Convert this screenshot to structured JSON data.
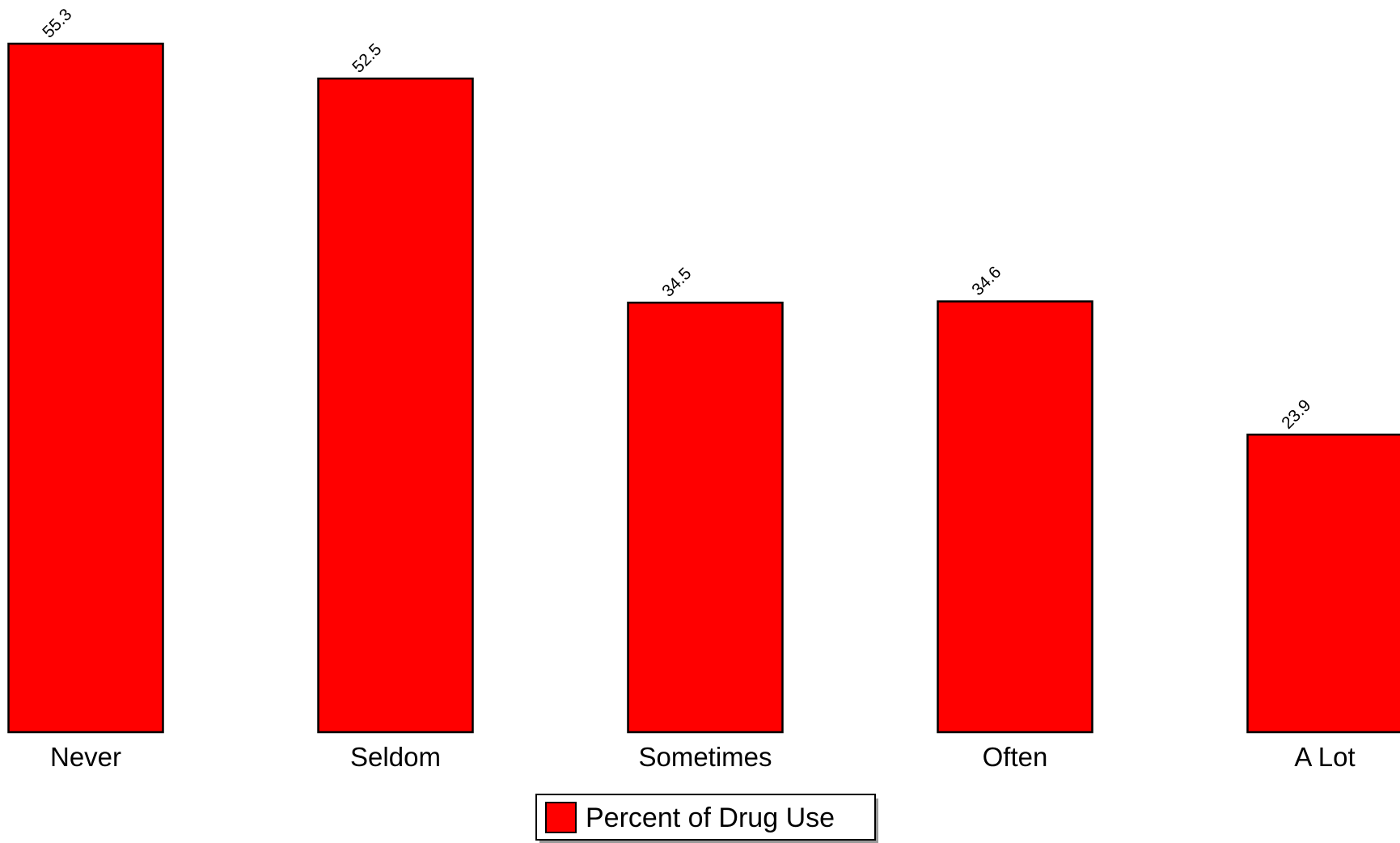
{
  "chart_data": {
    "type": "bar",
    "title": "",
    "xlabel": "",
    "ylabel": "",
    "categories": [
      "Never",
      "Seldom",
      "Sometimes",
      "Often",
      "A Lot"
    ],
    "series": [
      {
        "name": "Percent of Drug Use",
        "values": [
          55.3,
          52.5,
          34.5,
          34.6,
          23.9
        ],
        "labels": [
          "55.3",
          "52.5",
          "34.5",
          "34.6",
          "23.9"
        ],
        "color": "#ff0000"
      }
    ],
    "ylim": [
      0,
      55.3
    ],
    "grid": false,
    "legend_position": "bottom-center",
    "data_labels_rotated": true
  },
  "legend": {
    "label": "Percent of Drug Use"
  }
}
